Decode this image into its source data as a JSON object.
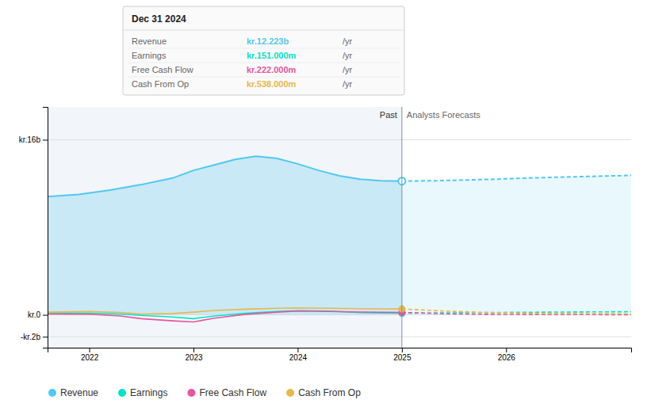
{
  "chart_data": {
    "type": "line",
    "xlim": [
      2021.6,
      2027.2
    ],
    "xticks": [
      2022,
      2023,
      2024,
      2025,
      2026
    ],
    "ylim": [
      -3000000000,
      19000000000
    ],
    "yticks": [
      {
        "value": 16000000000,
        "label": "kr.16b"
      },
      {
        "value": 0,
        "label": "kr.0"
      },
      {
        "value": -2000000000,
        "label": "-kr.2b"
      }
    ],
    "grid": true,
    "legend": "bottom",
    "series": [
      {
        "name": "Revenue",
        "type": "area",
        "color": "#4ec9f0",
        "x": [
          2021.6,
          2021.9,
          2022.2,
          2022.5,
          2022.8,
          2023.0,
          2023.2,
          2023.4,
          2023.6,
          2023.8,
          2024.0,
          2024.2,
          2024.4,
          2024.6,
          2024.8,
          2025.0,
          2025.0,
          2025.3,
          2025.6,
          2025.9,
          2026.2,
          2026.5,
          2026.8,
          2027.1,
          2027.2
        ],
        "values": [
          10800000000,
          11000000000,
          11400000000,
          11900000000,
          12500000000,
          13200000000,
          13700000000,
          14200000000,
          14500000000,
          14300000000,
          13800000000,
          13200000000,
          12700000000,
          12400000000,
          12250000000,
          12223000000,
          12223000000,
          12250000000,
          12320000000,
          12400000000,
          12500000000,
          12580000000,
          12650000000,
          12720000000,
          12750000000
        ]
      },
      {
        "name": "Earnings",
        "type": "line",
        "color": "#00e5c8",
        "x": [
          2021.6,
          2022.0,
          2022.3,
          2022.5,
          2022.8,
          2023.0,
          2023.2,
          2023.5,
          2023.8,
          2024.0,
          2024.3,
          2024.6,
          2024.8,
          2025.0,
          2025.0,
          2025.4,
          2025.8,
          2026.2,
          2026.6,
          2027.0,
          2027.2
        ],
        "values": [
          180000000,
          150000000,
          80000000,
          -50000000,
          -200000000,
          -350000000,
          -100000000,
          150000000,
          300000000,
          380000000,
          350000000,
          200000000,
          165000000,
          151000000,
          151000000,
          180000000,
          210000000,
          240000000,
          260000000,
          280000000,
          290000000
        ]
      },
      {
        "name": "Free Cash Flow",
        "type": "line",
        "color": "#e8549e",
        "x": [
          2021.6,
          2022.0,
          2022.3,
          2022.5,
          2022.8,
          2023.0,
          2023.2,
          2023.5,
          2023.8,
          2024.0,
          2024.3,
          2024.6,
          2024.8,
          2025.0,
          2025.0,
          2025.4,
          2025.8,
          2026.2,
          2026.6,
          2027.0,
          2027.2
        ],
        "values": [
          80000000,
          60000000,
          -100000000,
          -350000000,
          -550000000,
          -650000000,
          -300000000,
          50000000,
          250000000,
          350000000,
          310000000,
          260000000,
          235000000,
          222000000,
          222000000,
          100000000,
          50000000,
          30000000,
          20000000,
          15000000,
          12000000
        ]
      },
      {
        "name": "Cash From Op",
        "type": "line",
        "color": "#e8b84b",
        "x": [
          2021.6,
          2022.0,
          2022.3,
          2022.5,
          2022.8,
          2023.0,
          2023.2,
          2023.5,
          2023.8,
          2024.0,
          2024.3,
          2024.6,
          2024.8,
          2025.0,
          2025.0,
          2025.4,
          2025.8,
          2026.2,
          2026.6,
          2027.0,
          2027.2
        ],
        "values": [
          250000000,
          300000000,
          220000000,
          80000000,
          120000000,
          250000000,
          400000000,
          520000000,
          600000000,
          640000000,
          600000000,
          560000000,
          545000000,
          538000000,
          538000000,
          350000000,
          220000000,
          150000000,
          120000000,
          100000000,
          90000000
        ]
      }
    ],
    "annotations": [
      {
        "x": 2025.0,
        "text": "Past",
        "side": "left"
      },
      {
        "x": 2025.0,
        "text": "Analysts Forecasts",
        "side": "right"
      }
    ],
    "info_box": {
      "title": "Dec 31 2024",
      "rows": [
        {
          "label": "Revenue",
          "value": "kr.12.223b",
          "unit": "/yr",
          "color": "#4ec9f0"
        },
        {
          "label": "Earnings",
          "value": "kr.151.000m",
          "unit": "/yr",
          "color": "#00e5c8"
        },
        {
          "label": "Free Cash Flow",
          "value": "kr.222.000m",
          "unit": "/yr",
          "color": "#e8549e"
        },
        {
          "label": "Cash From Op",
          "value": "kr.538.000m",
          "unit": "/yr",
          "color": "#e8b84b"
        }
      ]
    }
  }
}
